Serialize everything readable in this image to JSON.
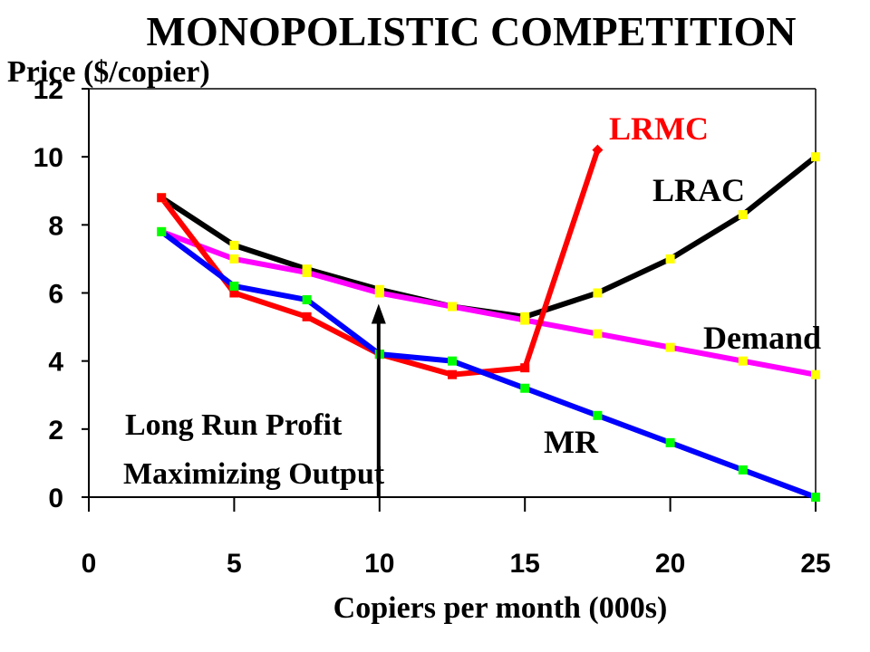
{
  "chart_data": {
    "type": "line",
    "title": "MONOPOLISTIC COMPETITION",
    "xlabel": "Copiers per month (000s)",
    "ylabel": "Price ($/copier)",
    "xlim": [
      0,
      25
    ],
    "ylim": [
      0,
      12
    ],
    "xticks": [
      "0",
      "5",
      "10",
      "15",
      "20",
      "25"
    ],
    "yticks": [
      "0",
      "2",
      "4",
      "6",
      "8",
      "10",
      "12"
    ],
    "grid": false,
    "series": [
      {
        "name": "LRAC",
        "color": "#000000",
        "marker_color": "#ffff00",
        "x": [
          2.5,
          5,
          7.5,
          10,
          12.5,
          15,
          17.5,
          20,
          22.5,
          25
        ],
        "y": [
          8.8,
          7.4,
          6.7,
          6.1,
          5.6,
          5.3,
          6.0,
          7.0,
          8.3,
          10.0
        ]
      },
      {
        "name": "Demand",
        "color": "#ff00ff",
        "marker_color": "#ffff00",
        "x": [
          2.5,
          5,
          7.5,
          10,
          12.5,
          15,
          17.5,
          20,
          22.5,
          25
        ],
        "y": [
          7.8,
          7.0,
          6.6,
          6.0,
          5.6,
          5.2,
          4.8,
          4.4,
          4.0,
          3.6
        ]
      },
      {
        "name": "LRMC",
        "color": "#ff0000",
        "marker_color": "#ff0000",
        "x": [
          2.5,
          5,
          7.5,
          10,
          12.5,
          15,
          17.5
        ],
        "y": [
          8.8,
          6.0,
          5.3,
          4.2,
          3.6,
          3.8,
          10.2
        ]
      },
      {
        "name": "MR",
        "color": "#0000ff",
        "marker_color": "#00ff00",
        "x": [
          2.5,
          5,
          7.5,
          10,
          12.5,
          15,
          17.5,
          20,
          22.5,
          25
        ],
        "y": [
          7.8,
          6.2,
          5.8,
          4.2,
          4.0,
          3.2,
          2.4,
          1.6,
          0.8,
          0.0
        ]
      }
    ],
    "series_labels": {
      "lrmc": "LRMC",
      "lrac": "LRAC",
      "demand": "Demand",
      "mr": "MR"
    },
    "annotation": {
      "line1": "Long Run Profit",
      "line2": "Maximizing Output",
      "arrow_x": 10,
      "arrow_from_y": 0,
      "arrow_to_y": 6.0
    }
  }
}
